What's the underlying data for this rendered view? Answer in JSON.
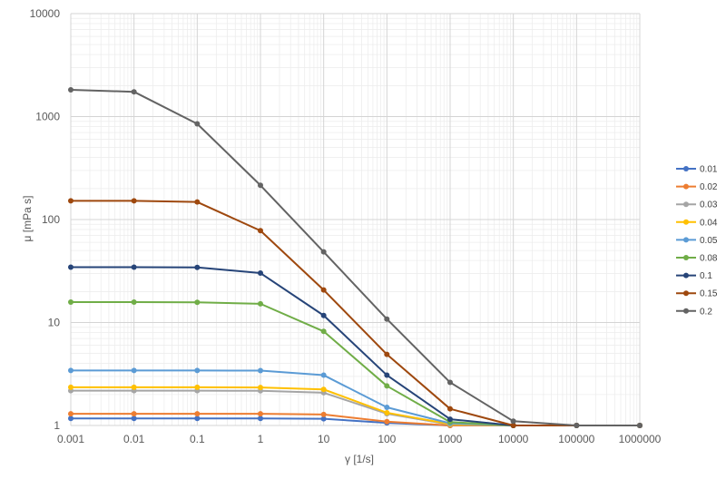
{
  "chart_data": {
    "type": "line",
    "title": "",
    "xlabel": "γ [1/s]",
    "ylabel": "μ [mPa s]",
    "x_scale": "log",
    "y_scale": "log",
    "xlim": [
      0.001,
      1000000
    ],
    "ylim": [
      1,
      10000
    ],
    "grid": true,
    "legend_position": "right",
    "x_tick_labels": [
      "0.001",
      "0.01",
      "0.1",
      "1",
      "10",
      "100",
      "1000",
      "10000",
      "100000",
      "1000000"
    ],
    "y_tick_labels": [
      "1",
      "10",
      "100",
      "1000",
      "10000"
    ],
    "x": [
      0.001,
      0.01,
      0.1,
      1,
      10,
      100,
      1000,
      10000,
      100000,
      1000000
    ],
    "series": [
      {
        "name": "0.01",
        "color": "#4472C4",
        "values": [
          1.17,
          1.17,
          1.17,
          1.17,
          1.16,
          1.06,
          1.0,
          1.0,
          1.0,
          1.0
        ]
      },
      {
        "name": "0.02",
        "color": "#ED7D31",
        "values": [
          1.3,
          1.3,
          1.3,
          1.3,
          1.28,
          1.09,
          1.0,
          1.0,
          1.0,
          1.0
        ]
      },
      {
        "name": "0.03",
        "color": "#A5A5A5",
        "values": [
          2.18,
          2.18,
          2.18,
          2.17,
          2.08,
          1.3,
          1.02,
          1.0,
          1.0,
          1.0
        ]
      },
      {
        "name": "0.04",
        "color": "#FFC000",
        "values": [
          2.35,
          2.35,
          2.35,
          2.34,
          2.24,
          1.33,
          1.03,
          1.0,
          1.0,
          1.0
        ]
      },
      {
        "name": "0.05",
        "color": "#5B9BD5",
        "values": [
          3.42,
          3.42,
          3.42,
          3.41,
          3.08,
          1.5,
          1.05,
          1.0,
          1.0,
          1.0
        ]
      },
      {
        "name": "0.08",
        "color": "#70AD47",
        "values": [
          15.8,
          15.8,
          15.7,
          15.2,
          8.2,
          2.42,
          1.08,
          1.0,
          1.0,
          1.0
        ]
      },
      {
        "name": "0.1",
        "color": "#264478",
        "values": [
          34.5,
          34.5,
          34.3,
          30.2,
          11.7,
          3.08,
          1.15,
          1.0,
          1.0,
          1.0
        ]
      },
      {
        "name": "0.15",
        "color": "#9E480E",
        "values": [
          152,
          152,
          148,
          78,
          20.7,
          4.9,
          1.45,
          1.0,
          1.0,
          1.0
        ]
      },
      {
        "name": "0.2",
        "color": "#636363",
        "values": [
          1820,
          1740,
          850,
          215,
          48.5,
          10.8,
          2.62,
          1.1,
          1.0,
          1.0
        ]
      }
    ]
  }
}
